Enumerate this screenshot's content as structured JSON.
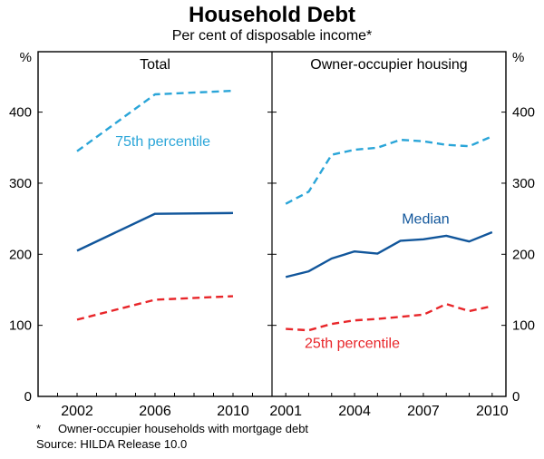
{
  "title": "Household Debt",
  "subtitle": "Per cent of disposable income*",
  "footnote": {
    "marker": "*",
    "text": "Owner-occupier households with mortgage debt"
  },
  "source": "Source: HILDA Release 10.0",
  "axis": {
    "unit_left": "%",
    "unit_right": "%"
  },
  "chart_data": [
    {
      "type": "line",
      "panel_label": "Total",
      "x": [
        2002,
        2006,
        2010
      ],
      "xticks": [
        2002,
        2006,
        2010
      ],
      "xlim": [
        2000,
        2012
      ],
      "ylim": [
        0,
        485
      ],
      "yticks": [
        0,
        100,
        200,
        300,
        400
      ],
      "series": [
        {
          "name": "75th percentile",
          "color": "#2aa5d8",
          "dashed": true,
          "values": [
            345,
            425,
            430
          ],
          "label_at": {
            "x": 2006.4,
            "y": 352
          }
        },
        {
          "name": "Median",
          "color": "#11569b",
          "dashed": false,
          "values": [
            205,
            257,
            258
          ]
        },
        {
          "name": "25th percentile",
          "color": "#e8262a",
          "dashed": true,
          "values": [
            108,
            136,
            141
          ]
        }
      ]
    },
    {
      "type": "line",
      "panel_label": "Owner-occupier housing",
      "x": [
        2001,
        2002,
        2003,
        2004,
        2005,
        2006,
        2007,
        2008,
        2009,
        2010
      ],
      "xticks": [
        2001,
        2004,
        2007,
        2010
      ],
      "xlim": [
        2000.4,
        2010.6
      ],
      "ylim": [
        0,
        485
      ],
      "yticks": [
        0,
        100,
        200,
        300,
        400
      ],
      "series": [
        {
          "name": "75th percentile",
          "color": "#2aa5d8",
          "dashed": true,
          "values": [
            271,
            288,
            340,
            347,
            350,
            361,
            359,
            354,
            352,
            366
          ]
        },
        {
          "name": "Median",
          "color": "#11569b",
          "dashed": false,
          "values": [
            168,
            176,
            194,
            204,
            201,
            219,
            221,
            226,
            218,
            231
          ],
          "label_at": {
            "x": 2007.1,
            "y": 243
          }
        },
        {
          "name": "25th percentile",
          "color": "#e8262a",
          "dashed": true,
          "values": [
            95,
            93,
            102,
            107,
            109,
            112,
            115,
            130,
            120,
            127
          ],
          "label_at": {
            "x": 2003.9,
            "y": 68
          }
        }
      ]
    }
  ]
}
